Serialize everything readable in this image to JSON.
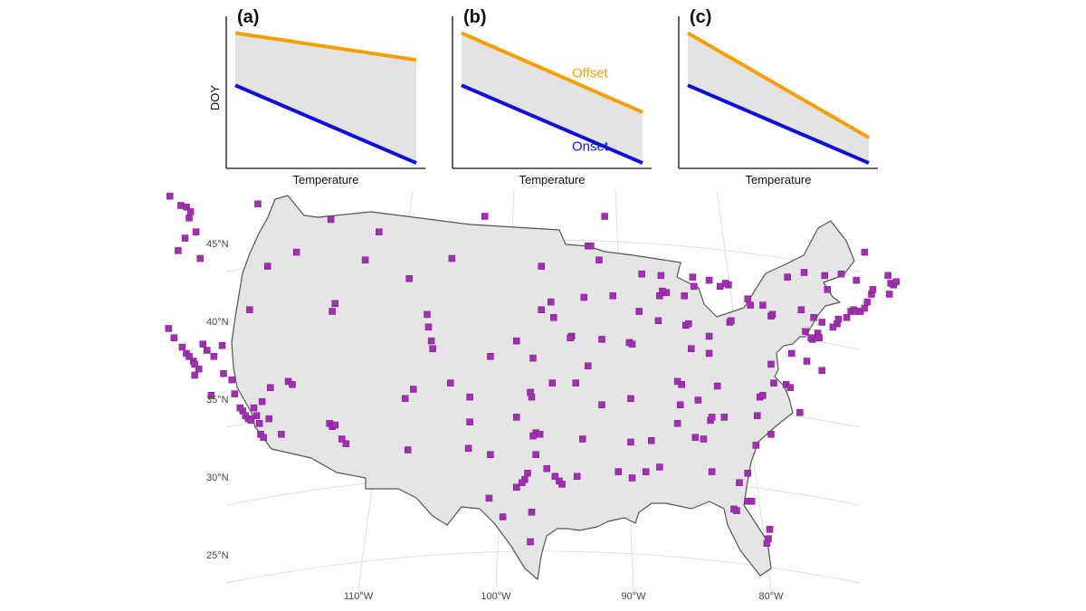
{
  "colors": {
    "offset": "#f5a000",
    "onset": "#1010d8",
    "band": "#e3e3e3",
    "land": "#e5e5e5",
    "border": "#555555",
    "site": "#a52db5",
    "graticule": "#dddddd"
  },
  "chart_data": [
    {
      "type": "line",
      "panel": "(a)",
      "xlabel": "Temperature",
      "ylabel": "DOY",
      "x": [
        0,
        1
      ],
      "series": [
        {
          "id": "offset",
          "values": [
            0.9,
            0.72
          ]
        },
        {
          "id": "onset",
          "values": [
            0.55,
            0.03
          ]
        }
      ],
      "shaded_between": true
    },
    {
      "type": "line",
      "panel": "(b)",
      "xlabel": "Temperature",
      "ylabel": "",
      "x": [
        0,
        1
      ],
      "series": [
        {
          "id": "offset",
          "name": "Offset",
          "values": [
            0.9,
            0.37
          ]
        },
        {
          "id": "onset",
          "name": "Onset",
          "values": [
            0.55,
            0.03
          ]
        }
      ],
      "shaded_between": true
    },
    {
      "type": "line",
      "panel": "(c)",
      "xlabel": "Temperature",
      "ylabel": "",
      "x": [
        0,
        1
      ],
      "series": [
        {
          "id": "offset",
          "values": [
            0.9,
            0.2
          ]
        },
        {
          "id": "onset",
          "values": [
            0.55,
            0.03
          ]
        }
      ],
      "shaded_between": true
    }
  ],
  "map": {
    "lat_labels": [
      "45°N",
      "40°N",
      "35°N",
      "30°N",
      "25°N"
    ],
    "lon_labels": [
      "110°W",
      "100°W",
      "90°W",
      "80°W"
    ],
    "sites": [
      [
        -123.7,
        48.1
      ],
      [
        -122.9,
        47.5
      ],
      [
        -122.5,
        47.4
      ],
      [
        -122.2,
        47.1
      ],
      [
        -122.3,
        46.7
      ],
      [
        -121.8,
        45.8
      ],
      [
        -122.6,
        45.4
      ],
      [
        -123.1,
        44.6
      ],
      [
        -121.5,
        44.1
      ],
      [
        -117.3,
        47.6
      ],
      [
        -116.6,
        43.6
      ],
      [
        -111.9,
        40.7
      ],
      [
        -111.7,
        41.2
      ],
      [
        -105.0,
        40.5
      ],
      [
        -104.9,
        39.7
      ],
      [
        -123.8,
        39.6
      ],
      [
        -123.4,
        39.0
      ],
      [
        -122.8,
        38.4
      ],
      [
        -122.5,
        38.0
      ],
      [
        -122.3,
        37.8
      ],
      [
        -122.0,
        37.5
      ],
      [
        -121.9,
        37.3
      ],
      [
        -121.6,
        37.0
      ],
      [
        -121.3,
        38.6
      ],
      [
        -121.0,
        38.2
      ],
      [
        -120.5,
        37.8
      ],
      [
        -119.9,
        38.5
      ],
      [
        -119.8,
        36.7
      ],
      [
        -119.2,
        36.3
      ],
      [
        -121.9,
        36.6
      ],
      [
        -120.7,
        35.3
      ],
      [
        -119.0,
        35.4
      ],
      [
        -118.4,
        34.3
      ],
      [
        -118.2,
        34.0
      ],
      [
        -118.0,
        33.8
      ],
      [
        -117.8,
        33.7
      ],
      [
        -117.4,
        34.0
      ],
      [
        -117.2,
        33.5
      ],
      [
        -117.1,
        32.8
      ],
      [
        -116.9,
        32.6
      ],
      [
        -116.5,
        33.8
      ],
      [
        -115.6,
        32.8
      ],
      [
        -118.6,
        34.5
      ],
      [
        -117.6,
        34.5
      ],
      [
        -117.0,
        34.9
      ],
      [
        -116.4,
        35.8
      ],
      [
        -115.1,
        36.2
      ],
      [
        -114.8,
        36.0
      ],
      [
        -112.1,
        33.5
      ],
      [
        -111.9,
        33.3
      ],
      [
        -111.7,
        33.4
      ],
      [
        -110.9,
        32.2
      ],
      [
        -111.2,
        32.5
      ],
      [
        -106.6,
        35.1
      ],
      [
        -106.0,
        35.7
      ],
      [
        -106.4,
        31.8
      ],
      [
        -104.7,
        38.8
      ],
      [
        -104.6,
        38.3
      ],
      [
        -103.3,
        36.1
      ],
      [
        -101.9,
        35.2
      ],
      [
        -101.9,
        33.6
      ],
      [
        -102.0,
        31.9
      ],
      [
        -100.4,
        31.5
      ],
      [
        -100.4,
        37.8
      ],
      [
        -98.5,
        38.8
      ],
      [
        -97.3,
        37.7
      ],
      [
        -97.5,
        35.5
      ],
      [
        -97.4,
        35.2
      ],
      [
        -95.9,
        36.1
      ],
      [
        -98.5,
        33.9
      ],
      [
        -97.1,
        32.9
      ],
      [
        -96.8,
        32.8
      ],
      [
        -97.3,
        32.7
      ],
      [
        -97.7,
        30.3
      ],
      [
        -97.9,
        29.9
      ],
      [
        -98.5,
        29.4
      ],
      [
        -98.1,
        29.7
      ],
      [
        -97.1,
        31.5
      ],
      [
        -96.3,
        30.6
      ],
      [
        -95.4,
        29.8
      ],
      [
        -95.2,
        29.6
      ],
      [
        -95.7,
        30.1
      ],
      [
        -94.1,
        30.1
      ],
      [
        -97.4,
        27.8
      ],
      [
        -97.5,
        25.9
      ],
      [
        -99.5,
        27.5
      ],
      [
        -100.5,
        28.7
      ],
      [
        -96.0,
        41.3
      ],
      [
        -96.7,
        40.8
      ],
      [
        -95.8,
        40.3
      ],
      [
        -96.7,
        43.6
      ],
      [
        -93.6,
        41.6
      ],
      [
        -91.5,
        41.7
      ],
      [
        -93.3,
        44.9
      ],
      [
        -93.1,
        44.9
      ],
      [
        -92.5,
        44.0
      ],
      [
        -92.1,
        46.8
      ],
      [
        -94.5,
        39.1
      ],
      [
        -94.6,
        39.0
      ],
      [
        -92.3,
        38.9
      ],
      [
        -93.3,
        37.2
      ],
      [
        -90.3,
        38.7
      ],
      [
        -90.1,
        38.6
      ],
      [
        -90.2,
        35.1
      ],
      [
        -92.3,
        34.7
      ],
      [
        -94.2,
        36.1
      ],
      [
        -90.2,
        32.3
      ],
      [
        -88.7,
        32.4
      ],
      [
        -89.1,
        30.4
      ],
      [
        -88.1,
        30.7
      ],
      [
        -90.1,
        30.0
      ],
      [
        -91.1,
        30.4
      ],
      [
        -93.7,
        32.5
      ],
      [
        -87.6,
        41.9
      ],
      [
        -87.9,
        42.0
      ],
      [
        -88.1,
        41.7
      ],
      [
        -88.0,
        43.0
      ],
      [
        -89.4,
        43.1
      ],
      [
        -89.6,
        40.7
      ],
      [
        -88.2,
        40.1
      ],
      [
        -85.7,
        42.9
      ],
      [
        -84.5,
        42.7
      ],
      [
        -83.7,
        42.3
      ],
      [
        -83.1,
        42.4
      ],
      [
        -83.3,
        42.5
      ],
      [
        -85.6,
        42.3
      ],
      [
        -86.3,
        41.7
      ],
      [
        -86.2,
        39.8
      ],
      [
        -86.0,
        39.9
      ],
      [
        -84.5,
        39.1
      ],
      [
        -83.0,
        40.0
      ],
      [
        -82.9,
        40.1
      ],
      [
        -81.7,
        41.5
      ],
      [
        -81.5,
        41.1
      ],
      [
        -80.6,
        41.1
      ],
      [
        -80.0,
        40.4
      ],
      [
        -79.9,
        40.5
      ],
      [
        -85.8,
        38.3
      ],
      [
        -84.5,
        38.0
      ],
      [
        -86.8,
        36.2
      ],
      [
        -86.5,
        36.0
      ],
      [
        -85.3,
        35.0
      ],
      [
        -83.9,
        35.9
      ],
      [
        -84.4,
        33.7
      ],
      [
        -84.3,
        33.9
      ],
      [
        -83.4,
        33.9
      ],
      [
        -86.8,
        33.5
      ],
      [
        -86.6,
        34.7
      ],
      [
        -85.5,
        32.6
      ],
      [
        -84.3,
        30.4
      ],
      [
        -84.9,
        32.5
      ],
      [
        -81.1,
        32.1
      ],
      [
        -80.0,
        32.8
      ],
      [
        -81.0,
        34.0
      ],
      [
        -80.8,
        35.2
      ],
      [
        -80.6,
        35.3
      ],
      [
        -79.8,
        36.1
      ],
      [
        -78.9,
        36.0
      ],
      [
        -78.6,
        35.8
      ],
      [
        -77.9,
        34.2
      ],
      [
        -80.0,
        37.3
      ],
      [
        -78.5,
        38.0
      ],
      [
        -77.4,
        37.5
      ],
      [
        -76.3,
        36.9
      ],
      [
        -77.0,
        38.9
      ],
      [
        -77.1,
        39.0
      ],
      [
        -76.6,
        39.3
      ],
      [
        -76.5,
        39.0
      ],
      [
        -77.5,
        39.4
      ],
      [
        -75.2,
        39.9
      ],
      [
        -75.5,
        39.7
      ],
      [
        -75.1,
        40.2
      ],
      [
        -74.5,
        40.3
      ],
      [
        -74.2,
        40.7
      ],
      [
        -74.0,
        40.8
      ],
      [
        -73.8,
        40.7
      ],
      [
        -73.5,
        40.7
      ],
      [
        -73.2,
        40.9
      ],
      [
        -73.0,
        41.3
      ],
      [
        -72.7,
        41.8
      ],
      [
        -71.4,
        41.8
      ],
      [
        -71.1,
        42.4
      ],
      [
        -71.3,
        42.5
      ],
      [
        -70.9,
        42.6
      ],
      [
        -71.5,
        43.0
      ],
      [
        -72.6,
        42.1
      ],
      [
        -73.8,
        42.7
      ],
      [
        -76.1,
        43.0
      ],
      [
        -77.6,
        43.2
      ],
      [
        -78.8,
        42.9
      ],
      [
        -75.9,
        42.1
      ],
      [
        -74.9,
        43.1
      ],
      [
        -73.2,
        44.5
      ],
      [
        -76.9,
        40.3
      ],
      [
        -76.3,
        40.0
      ],
      [
        -77.8,
        40.8
      ],
      [
        -81.7,
        28.5
      ],
      [
        -81.4,
        28.5
      ],
      [
        -82.5,
        27.9
      ],
      [
        -82.7,
        28.0
      ],
      [
        -80.2,
        26.1
      ],
      [
        -80.1,
        26.7
      ],
      [
        -80.3,
        25.8
      ],
      [
        -81.7,
        30.3
      ],
      [
        -82.3,
        29.7
      ],
      [
        -117.9,
        40.8
      ],
      [
        -114.5,
        44.5
      ],
      [
        -108.5,
        45.8
      ],
      [
        -100.8,
        46.8
      ],
      [
        -103.2,
        44.1
      ],
      [
        -106.3,
        42.8
      ],
      [
        -112.0,
        46.6
      ],
      [
        -109.5,
        44.0
      ]
    ]
  }
}
